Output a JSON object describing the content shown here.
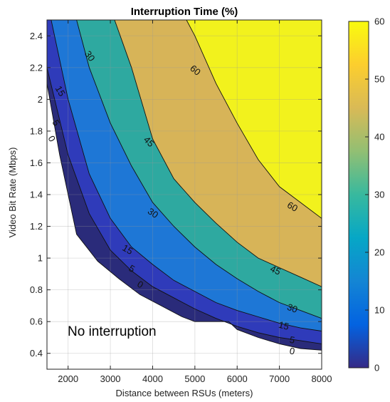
{
  "chart_data": {
    "type": "contour",
    "title": "Interruption Time (%)",
    "xlabel": "Distance between RSUs (meters)",
    "ylabel": "Video Bit Rate (Mbps)",
    "xlim": [
      1500,
      8000
    ],
    "ylim": [
      0.3,
      2.5
    ],
    "xticks": [
      "2000",
      "3000",
      "4000",
      "5000",
      "6000",
      "7000",
      "8000"
    ],
    "yticks": [
      "0.4",
      "0.6",
      "0.8",
      "1",
      "1.2",
      "1.4",
      "1.6",
      "1.8",
      "2",
      "2.2",
      "2.4"
    ],
    "grid": true,
    "annotation": "No interruption",
    "contour_levels": [
      {
        "level": 0,
        "color": "#2a2b7a",
        "points": [
          [
            1500,
            2.1
          ],
          [
            1800,
            1.65
          ],
          [
            2200,
            1.15
          ],
          [
            2700,
            0.98
          ],
          [
            3200,
            0.87
          ],
          [
            3700,
            0.77
          ],
          [
            4200,
            0.7
          ],
          [
            4700,
            0.63
          ],
          [
            5000,
            0.6
          ],
          [
            5800,
            0.6
          ],
          [
            6000,
            0.55
          ],
          [
            6500,
            0.5
          ],
          [
            7000,
            0.46
          ],
          [
            7500,
            0.43
          ],
          [
            8000,
            0.42
          ]
        ]
      },
      {
        "level": 5,
        "color": "#2f3bba",
        "points": [
          [
            1500,
            2.2
          ],
          [
            2000,
            1.65
          ],
          [
            2500,
            1.28
          ],
          [
            3000,
            1.05
          ],
          [
            3500,
            0.92
          ],
          [
            4000,
            0.82
          ],
          [
            4500,
            0.75
          ],
          [
            5000,
            0.68
          ],
          [
            5500,
            0.62
          ],
          [
            6000,
            0.57
          ],
          [
            6500,
            0.53
          ],
          [
            7000,
            0.5
          ],
          [
            7500,
            0.48
          ],
          [
            8000,
            0.46
          ]
        ]
      },
      {
        "level": 15,
        "color": "#1e77d6",
        "points": [
          [
            1600,
            2.5
          ],
          [
            2000,
            2.0
          ],
          [
            2500,
            1.53
          ],
          [
            3000,
            1.25
          ],
          [
            3500,
            1.07
          ],
          [
            4000,
            0.96
          ],
          [
            4500,
            0.86
          ],
          [
            5000,
            0.79
          ],
          [
            5500,
            0.72
          ],
          [
            6000,
            0.67
          ],
          [
            6500,
            0.63
          ],
          [
            7000,
            0.59
          ],
          [
            7500,
            0.56
          ],
          [
            8000,
            0.54
          ]
        ]
      },
      {
        "level": 30,
        "color": "#2ea9a0",
        "points": [
          [
            2200,
            2.5
          ],
          [
            2500,
            2.2
          ],
          [
            3000,
            1.85
          ],
          [
            3500,
            1.58
          ],
          [
            4000,
            1.35
          ],
          [
            4500,
            1.2
          ],
          [
            5000,
            1.07
          ],
          [
            5500,
            0.96
          ],
          [
            6000,
            0.87
          ],
          [
            6500,
            0.79
          ],
          [
            7000,
            0.72
          ],
          [
            7500,
            0.67
          ],
          [
            8000,
            0.62
          ]
        ]
      },
      {
        "level": 45,
        "color": "#d7b458",
        "points": [
          [
            3100,
            2.5
          ],
          [
            3500,
            2.2
          ],
          [
            4000,
            1.75
          ],
          [
            4500,
            1.5
          ],
          [
            5000,
            1.35
          ],
          [
            5500,
            1.22
          ],
          [
            6000,
            1.1
          ],
          [
            6500,
            1.0
          ],
          [
            7000,
            0.94
          ],
          [
            7500,
            0.88
          ],
          [
            8000,
            0.82
          ]
        ]
      },
      {
        "level": 60,
        "color": "#f2f21d",
        "points": [
          [
            4800,
            2.5
          ],
          [
            5000,
            2.4
          ],
          [
            5500,
            2.1
          ],
          [
            6000,
            1.85
          ],
          [
            6500,
            1.62
          ],
          [
            7000,
            1.45
          ],
          [
            7500,
            1.35
          ],
          [
            8000,
            1.25
          ]
        ]
      }
    ],
    "contour_label_positions": [
      {
        "text": "30",
        "x": 2500,
        "y": 2.27,
        "angle": 55
      },
      {
        "text": "15",
        "x": 1800,
        "y": 2.05,
        "angle": 60
      },
      {
        "text": "5",
        "x": 1700,
        "y": 1.85,
        "angle": 60
      },
      {
        "text": "0",
        "x": 1600,
        "y": 1.75,
        "angle": 60
      },
      {
        "text": "60",
        "x": 5000,
        "y": 2.18,
        "angle": 40
      },
      {
        "text": "45",
        "x": 3900,
        "y": 1.73,
        "angle": 45
      },
      {
        "text": "30",
        "x": 4000,
        "y": 1.28,
        "angle": 35
      },
      {
        "text": "15",
        "x": 3400,
        "y": 1.05,
        "angle": 30
      },
      {
        "text": "5",
        "x": 3500,
        "y": 0.93,
        "angle": 30
      },
      {
        "text": "0",
        "x": 3700,
        "y": 0.83,
        "angle": 30
      },
      {
        "text": "60",
        "x": 7300,
        "y": 1.32,
        "angle": 30
      },
      {
        "text": "45",
        "x": 6900,
        "y": 0.92,
        "angle": 25
      },
      {
        "text": "30",
        "x": 7300,
        "y": 0.68,
        "angle": 20
      },
      {
        "text": "15",
        "x": 7100,
        "y": 0.57,
        "angle": 15
      },
      {
        "text": "5",
        "x": 7300,
        "y": 0.48,
        "angle": 10
      },
      {
        "text": "0",
        "x": 7300,
        "y": 0.41,
        "angle": 10
      }
    ],
    "colorbar": {
      "min": 0,
      "max": 60,
      "ticks": [
        "0",
        "10",
        "20",
        "30",
        "40",
        "50",
        "60"
      ],
      "colors": [
        "#352a87",
        "#0363e1",
        "#1485d4",
        "#06a7c6",
        "#38b99e",
        "#92bf73",
        "#d9ba56",
        "#fcce2e",
        "#f9fb0e"
      ]
    }
  }
}
